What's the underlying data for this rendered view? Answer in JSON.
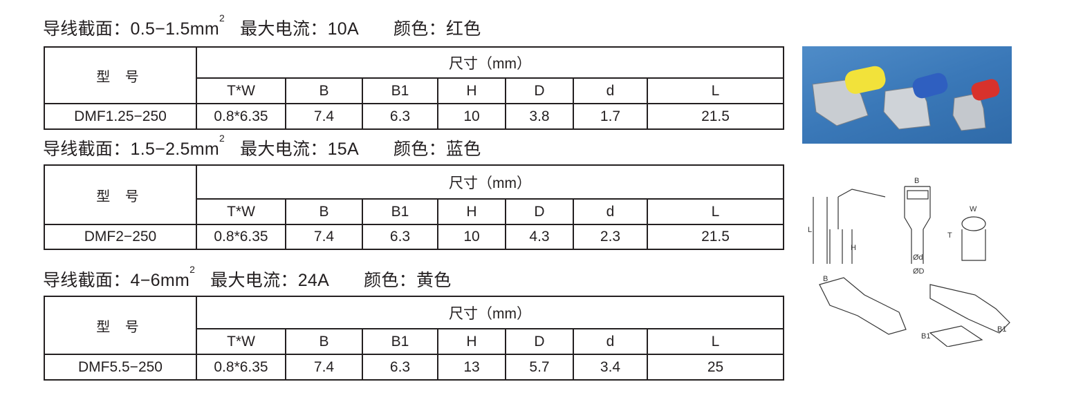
{
  "table_headers": {
    "model": "型 号",
    "dimensions": "尺寸（mm）",
    "columns": [
      "T*W",
      "B",
      "B1",
      "H",
      "D",
      "d",
      "L"
    ]
  },
  "sections": [
    {
      "heading": {
        "area_label": "导线截面：",
        "area_value": "0.5−1.5mm",
        "area_sup": "2",
        "current_label": "最大电流：",
        "current_value": "10A",
        "color_label": "颜色：",
        "color_value": "红色"
      },
      "row": {
        "model": "DMF1.25−250",
        "values": [
          "0.8*6.35",
          "7.4",
          "6.3",
          "10",
          "3.8",
          "1.7",
          "21.5"
        ]
      }
    },
    {
      "heading": {
        "area_label": "导线截面：",
        "area_value": "1.5−2.5mm",
        "area_sup": "2",
        "current_label": "最大电流：",
        "current_value": "15A",
        "color_label": "颜色：",
        "color_value": "蓝色"
      },
      "row": {
        "model": "DMF2−250",
        "values": [
          "0.8*6.35",
          "7.4",
          "6.3",
          "10",
          "4.3",
          "2.3",
          "21.5"
        ]
      }
    },
    {
      "heading": {
        "area_label": "导线截面：",
        "area_value": "4−6mm",
        "area_sup": "2",
        "current_label": "最大电流：",
        "current_value": "24A",
        "color_label": "颜色：",
        "color_value": "黄色"
      },
      "row": {
        "model": "DMF5.5−250",
        "values": [
          "0.8*6.35",
          "7.4",
          "6.3",
          "13",
          "5.7",
          "3.4",
          "25"
        ]
      }
    }
  ],
  "photo": {
    "background": "#3f7fbf",
    "insulator_colors": [
      "#f2e23a",
      "#2f5fc0",
      "#d8322c"
    ]
  },
  "diagram_labels": {
    "L": "L",
    "H": "H",
    "B": "B",
    "d": "Ød",
    "D": "ØD",
    "W": "W",
    "T": "T",
    "B1": "B1"
  }
}
